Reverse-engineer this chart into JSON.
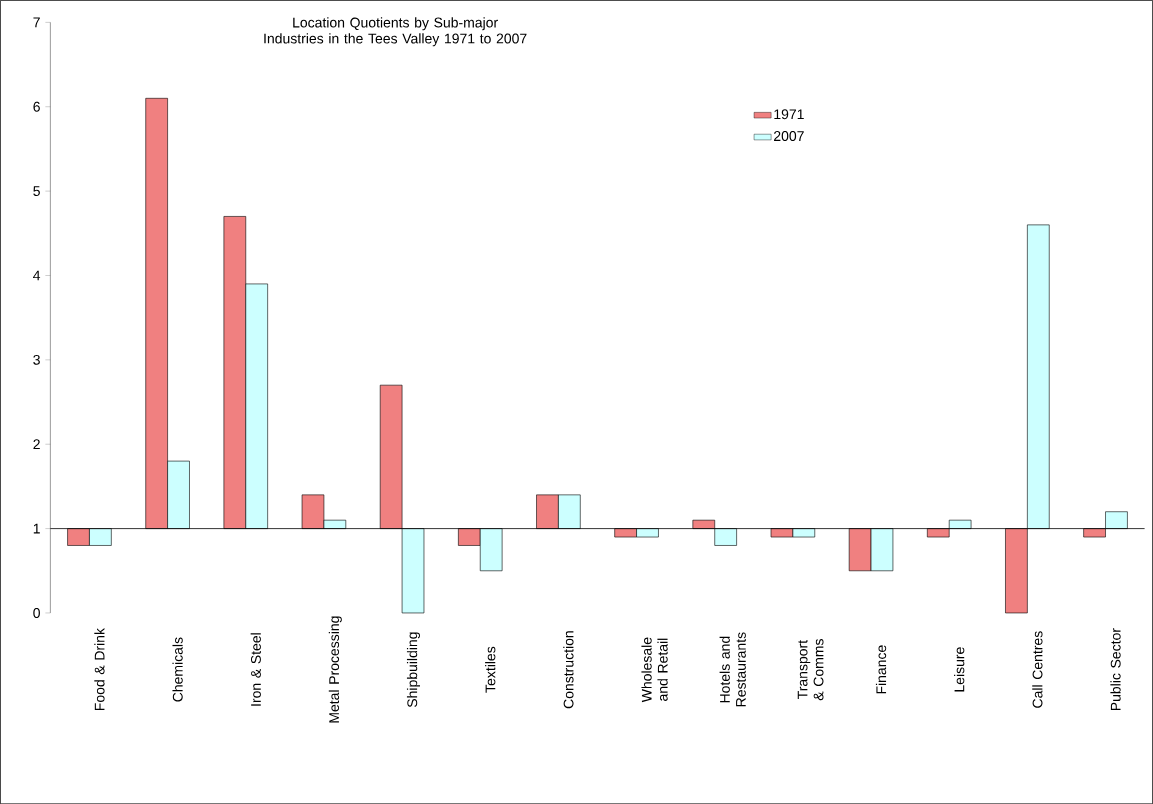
{
  "chart_data": {
    "type": "bar",
    "title": "Location Quotients by Sub-major Industries in the Tees Valley 1971 to 2007",
    "categories": [
      "Food & Drink",
      "Chemicals",
      "Iron & Steel",
      "Metal Processing",
      "Shipbuilding",
      "Textiles",
      "Construction",
      "Wholesale and Retail",
      "Hotels and Restaurants",
      "Transport & Comms",
      "Finance",
      "Leisure",
      "Call Centres",
      "Public Sector"
    ],
    "series": [
      {
        "name": "1971",
        "color": "#f08080",
        "base": [
          1,
          1,
          1,
          1,
          1,
          1,
          1,
          1,
          1,
          1,
          1,
          1,
          1,
          1
        ],
        "values": [
          -0.2,
          5.1,
          3.7,
          0.4,
          1.7,
          -0.2,
          0.4,
          -0.1,
          0.1,
          -0.1,
          -0.5,
          -0.1,
          -1,
          -0.1
        ]
      },
      {
        "name": "2007",
        "color": "#ccffff",
        "base": [
          1,
          1,
          1,
          1,
          1,
          1,
          1,
          1,
          1,
          1,
          1,
          1,
          1,
          1
        ],
        "values": [
          -0.2,
          0.8,
          2.9,
          0.1,
          -1,
          -0.5,
          0.4,
          -0.1,
          -0.2,
          -0.1,
          -0.5,
          0.1,
          3.6,
          0.2
        ]
      }
    ],
    "ylim": [
      0,
      7
    ],
    "yticks": [
      0,
      1,
      2,
      3,
      4,
      5,
      6,
      7
    ],
    "legend": "top right"
  }
}
